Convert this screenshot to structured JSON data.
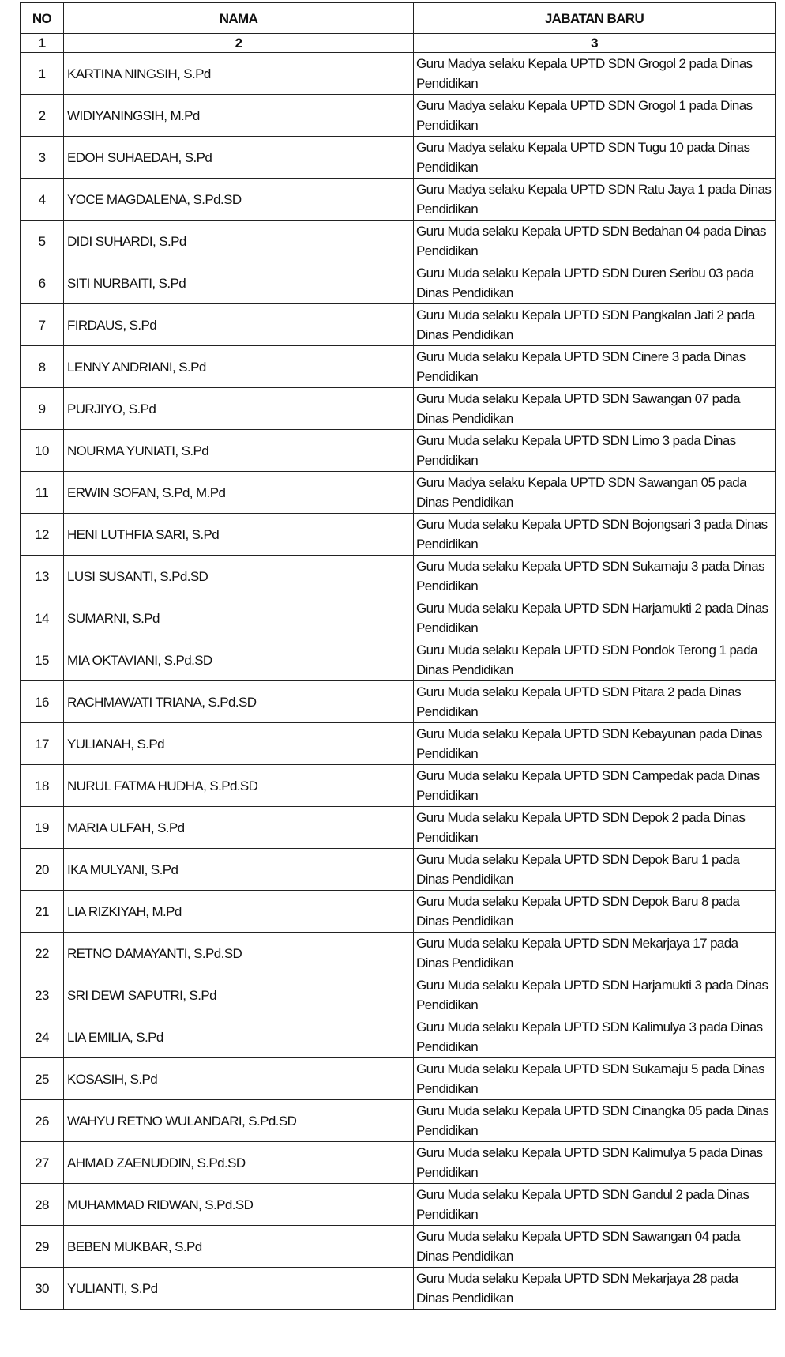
{
  "table": {
    "headers": [
      "NO",
      "NAMA",
      "JABATAN BARU"
    ],
    "column_numbers": [
      "1",
      "2",
      "3"
    ],
    "rows": [
      {
        "no": "1",
        "nama": "KARTINA NINGSIH, S.Pd",
        "jabatan": "Guru Madya selaku Kepala UPTD SDN Grogol 2 pada Dinas Pendidikan"
      },
      {
        "no": "2",
        "nama": "WIDIYANINGSIH, M.Pd",
        "jabatan": "Guru Madya selaku Kepala UPTD SDN Grogol 1 pada Dinas Pendidikan"
      },
      {
        "no": "3",
        "nama": "EDOH SUHAEDAH, S.Pd",
        "jabatan": "Guru Madya selaku Kepala UPTD SDN Tugu 10 pada Dinas Pendidikan"
      },
      {
        "no": "4",
        "nama": "YOCE MAGDALENA, S.Pd.SD",
        "jabatan": "Guru Madya selaku Kepala UPTD SDN Ratu Jaya 1 pada Dinas Pendidikan"
      },
      {
        "no": "5",
        "nama": "DIDI SUHARDI, S.Pd",
        "jabatan": "Guru Muda selaku Kepala UPTD SDN Bedahan 04 pada Dinas Pendidikan"
      },
      {
        "no": "6",
        "nama": "SITI NURBAITI, S.Pd",
        "jabatan": "Guru Muda selaku Kepala UPTD SDN Duren Seribu 03 pada Dinas Pendidikan"
      },
      {
        "no": "7",
        "nama": "FIRDAUS, S.Pd",
        "jabatan": "Guru Muda selaku Kepala UPTD SDN Pangkalan Jati 2 pada Dinas Pendidikan"
      },
      {
        "no": "8",
        "nama": "LENNY ANDRIANI, S.Pd",
        "jabatan": "Guru Muda selaku Kepala UPTD SDN Cinere 3 pada Dinas Pendidikan"
      },
      {
        "no": "9",
        "nama": "PURJIYO, S.Pd",
        "jabatan": "Guru Muda selaku Kepala UPTD SDN Sawangan 07 pada Dinas Pendidikan"
      },
      {
        "no": "10",
        "nama": "NOURMA YUNIATI, S.Pd",
        "jabatan": "Guru Muda selaku Kepala UPTD SDN Limo 3 pada Dinas Pendidikan"
      },
      {
        "no": "11",
        "nama": "ERWIN SOFAN, S.Pd, M.Pd",
        "jabatan": "Guru Madya selaku Kepala UPTD SDN Sawangan 05 pada Dinas Pendidikan"
      },
      {
        "no": "12",
        "nama": "HENI LUTHFIA SARI, S.Pd",
        "jabatan": "Guru Muda selaku Kepala UPTD SDN Bojongsari 3 pada Dinas Pendidikan"
      },
      {
        "no": "13",
        "nama": "LUSI SUSANTI, S.Pd.SD",
        "jabatan": "Guru Muda selaku Kepala UPTD SDN Sukamaju 3 pada Dinas Pendidikan"
      },
      {
        "no": "14",
        "nama": "SUMARNI, S.Pd",
        "jabatan": "Guru Muda selaku Kepala UPTD SDN Harjamukti 2 pada Dinas Pendidikan"
      },
      {
        "no": "15",
        "nama": "MIA OKTAVIANI, S.Pd.SD",
        "jabatan": "Guru Muda selaku Kepala UPTD SDN Pondok Terong 1 pada Dinas Pendidikan"
      },
      {
        "no": "16",
        "nama": "RACHMAWATI TRIANA, S.Pd.SD",
        "jabatan": "Guru Muda selaku Kepala UPTD SDN Pitara 2 pada Dinas Pendidikan"
      },
      {
        "no": "17",
        "nama": "YULIANAH, S.Pd",
        "jabatan": "Guru Muda selaku Kepala UPTD SDN Kebayunan pada Dinas Pendidikan"
      },
      {
        "no": "18",
        "nama": "NURUL FATMA HUDHA, S.Pd.SD",
        "jabatan": "Guru Muda selaku Kepala UPTD SDN Campedak pada Dinas Pendidikan"
      },
      {
        "no": "19",
        "nama": "MARIA ULFAH, S.Pd",
        "jabatan": "Guru Muda selaku Kepala UPTD SDN Depok 2 pada Dinas Pendidikan"
      },
      {
        "no": "20",
        "nama": "IKA MULYANI, S.Pd",
        "jabatan": "Guru Muda selaku Kepala UPTD SDN Depok Baru 1 pada Dinas Pendidikan"
      },
      {
        "no": "21",
        "nama": "LIA RIZKIYAH, M.Pd",
        "jabatan": "Guru Muda selaku Kepala UPTD SDN Depok Baru 8 pada Dinas Pendidikan"
      },
      {
        "no": "22",
        "nama": "RETNO DAMAYANTI, S.Pd.SD",
        "jabatan": "Guru Muda selaku Kepala UPTD SDN Mekarjaya 17 pada Dinas Pendidikan"
      },
      {
        "no": "23",
        "nama": "SRI DEWI SAPUTRI, S.Pd",
        "jabatan": "Guru Muda selaku Kepala UPTD SDN Harjamukti 3 pada Dinas Pendidikan"
      },
      {
        "no": "24",
        "nama": "LIA EMILIA, S.Pd",
        "jabatan": "Guru Muda selaku Kepala UPTD SDN Kalimulya 3 pada Dinas Pendidikan"
      },
      {
        "no": "25",
        "nama": "KOSASIH, S.Pd",
        "jabatan": "Guru Muda selaku Kepala UPTD SDN Sukamaju 5 pada Dinas Pendidikan"
      },
      {
        "no": "26",
        "nama": "WAHYU RETNO WULANDARI, S.Pd.SD",
        "jabatan": "Guru Muda selaku Kepala UPTD SDN Cinangka 05 pada Dinas Pendidikan"
      },
      {
        "no": "27",
        "nama": "AHMAD ZAENUDDIN, S.Pd.SD",
        "jabatan": "Guru Muda selaku Kepala UPTD SDN Kalimulya 5 pada Dinas Pendidikan"
      },
      {
        "no": "28",
        "nama": "MUHAMMAD RIDWAN, S.Pd.SD",
        "jabatan": "Guru Muda selaku Kepala UPTD SDN Gandul 2 pada Dinas Pendidikan"
      },
      {
        "no": "29",
        "nama": "BEBEN MUKBAR, S.Pd",
        "jabatan": "Guru Muda selaku Kepala UPTD SDN Sawangan 04 pada Dinas Pendidikan"
      },
      {
        "no": "30",
        "nama": "YULIANTI, S.Pd",
        "jabatan": "Guru Muda selaku Kepala UPTD SDN Mekarjaya 28 pada Dinas Pendidikan"
      }
    ]
  }
}
